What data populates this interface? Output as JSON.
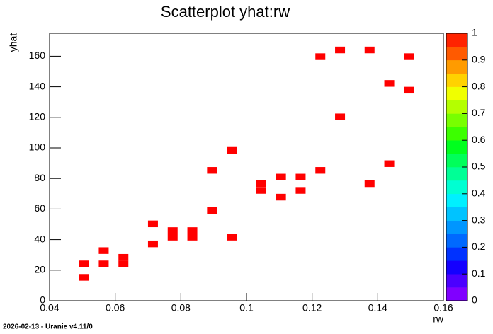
{
  "chart_data": {
    "type": "scatter",
    "title": "Scatterplot yhat:rw",
    "x_label": "rw",
    "y_label": "yhat",
    "footer": "2026-02-13 - Uranie v4.11/0",
    "color": "#ff0000",
    "xlim": [
      0.04,
      0.16
    ],
    "xticks": [
      0.04,
      0.06,
      0.08,
      0.1,
      0.12,
      0.14,
      0.16
    ],
    "ylim": [
      0,
      175
    ],
    "yticks": [
      0,
      20,
      40,
      60,
      80,
      100,
      120,
      140,
      160
    ],
    "zlim": [
      0,
      1
    ],
    "zticks": [
      0,
      0.1,
      0.2,
      0.3,
      0.4,
      0.5,
      0.6,
      0.7,
      0.8,
      0.9,
      1
    ],
    "palette": [
      "#8000ff",
      "#4b00ff",
      "#1400ff",
      "#0032ff",
      "#0069ff",
      "#0096ff",
      "#00c3ff",
      "#00f0ff",
      "#00ffd2",
      "#00ff96",
      "#00ff5a",
      "#00ff1e",
      "#3cff00",
      "#78ff00",
      "#b4ff00",
      "#f0ff00",
      "#ffd200",
      "#ff9b00",
      "#ff5a00",
      "#ff2300"
    ],
    "x": [
      0.0505,
      0.0505,
      0.0565,
      0.0565,
      0.0625,
      0.0625,
      0.0715,
      0.0715,
      0.0775,
      0.0775,
      0.0835,
      0.0835,
      0.0895,
      0.0895,
      0.0955,
      0.0955,
      0.1045,
      0.1045,
      0.1105,
      0.1105,
      0.1165,
      0.1165,
      0.1225,
      0.1225,
      0.1285,
      0.1285,
      0.1375,
      0.1375,
      0.1435,
      0.1435,
      0.1495,
      0.1495
    ],
    "values": [
      24.1,
      15.3,
      32.8,
      24.1,
      24.1,
      28.4,
      37.2,
      50.3,
      41.6,
      45.9,
      41.6,
      45.9,
      59.1,
      85.3,
      41.6,
      98.4,
      72.2,
      76.6,
      67.8,
      80.9,
      72.2,
      80.9,
      159.7,
      85.3,
      164.1,
      120.3,
      164.1,
      76.6,
      142.2,
      89.7,
      159.7,
      137.8
    ]
  }
}
